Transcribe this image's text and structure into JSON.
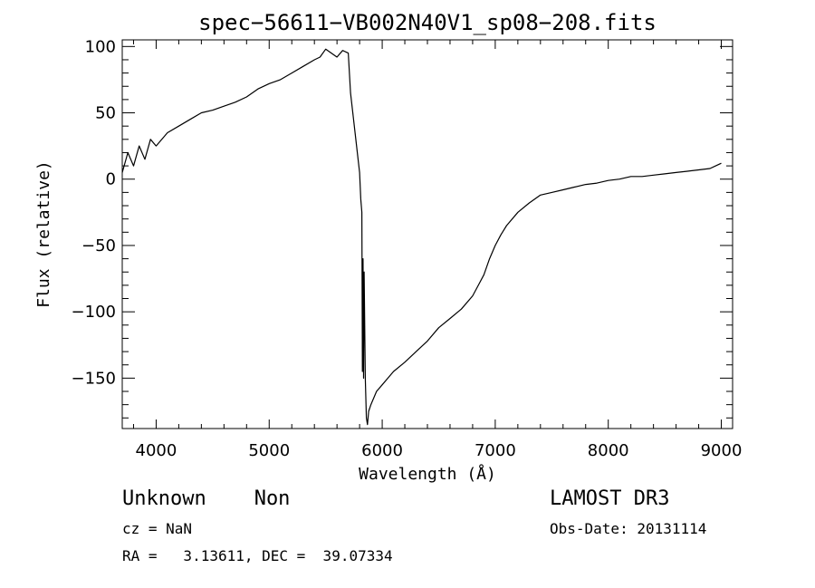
{
  "chart_data": {
    "type": "line",
    "title": "spec−56611−VB002N40V1_sp08−208.fits",
    "xlabel": "Wavelength (Å)",
    "ylabel": "Flux (relative)",
    "xlim": [
      3700,
      9100
    ],
    "ylim": [
      -188,
      105
    ],
    "x_ticks": [
      4000,
      5000,
      6000,
      7000,
      8000,
      9000
    ],
    "x_tick_labels": [
      "4000",
      "5000",
      "6000",
      "7000",
      "8000",
      "9000"
    ],
    "y_ticks": [
      100,
      50,
      0,
      -50,
      -100,
      -150
    ],
    "y_tick_labels": [
      "100",
      "50",
      "0",
      "−50",
      "−100",
      "−150"
    ],
    "grid": false,
    "legend": "none",
    "line_color": "#000000",
    "series": [
      {
        "x": [
          3700,
          3750,
          3800,
          3850,
          3900,
          3950,
          4000,
          4100,
          4200,
          4300,
          4400,
          4500,
          4600,
          4700,
          4800,
          4900,
          5000,
          5100,
          5200,
          5300,
          5400,
          5450,
          5500,
          5550,
          5600,
          5650,
          5700,
          5720,
          5740,
          5760,
          5780,
          5800,
          5810,
          5820,
          5825,
          5830,
          5835,
          5840,
          5850,
          5860,
          5870,
          5880,
          5900,
          5950,
          6000,
          6050,
          6100,
          6200,
          6300,
          6400,
          6500,
          6600,
          6700,
          6800,
          6850,
          6900,
          6950,
          7000,
          7050,
          7100,
          7200,
          7300,
          7400,
          7500,
          7600,
          7700,
          7800,
          7900,
          8000,
          8100,
          8200,
          8300,
          8400,
          8500,
          8600,
          8700,
          8800,
          8900,
          8950,
          9000
        ],
        "y": [
          5,
          20,
          10,
          25,
          15,
          30,
          25,
          35,
          40,
          45,
          50,
          52,
          55,
          58,
          62,
          68,
          72,
          75,
          80,
          85,
          90,
          92,
          98,
          95,
          92,
          97,
          95,
          65,
          50,
          35,
          20,
          5,
          -15,
          -25,
          -145,
          -60,
          -150,
          -70,
          -150,
          -180,
          -185,
          -175,
          -170,
          -160,
          -155,
          -150,
          -145,
          -138,
          -130,
          -122,
          -112,
          -105,
          -98,
          -88,
          -80,
          -72,
          -60,
          -50,
          -42,
          -35,
          -25,
          -18,
          -12,
          -10,
          -8,
          -6,
          -4,
          -3,
          -1,
          0,
          2,
          2,
          3,
          4,
          5,
          6,
          7,
          8,
          10,
          12
        ]
      }
    ]
  },
  "footer": {
    "classification": "Unknown    Non",
    "cz": "cz = NaN",
    "coords": "RA =   3.13611, DEC =  39.07334",
    "survey": "LAMOST DR3",
    "obs_date": "Obs-Date: 20131114"
  }
}
